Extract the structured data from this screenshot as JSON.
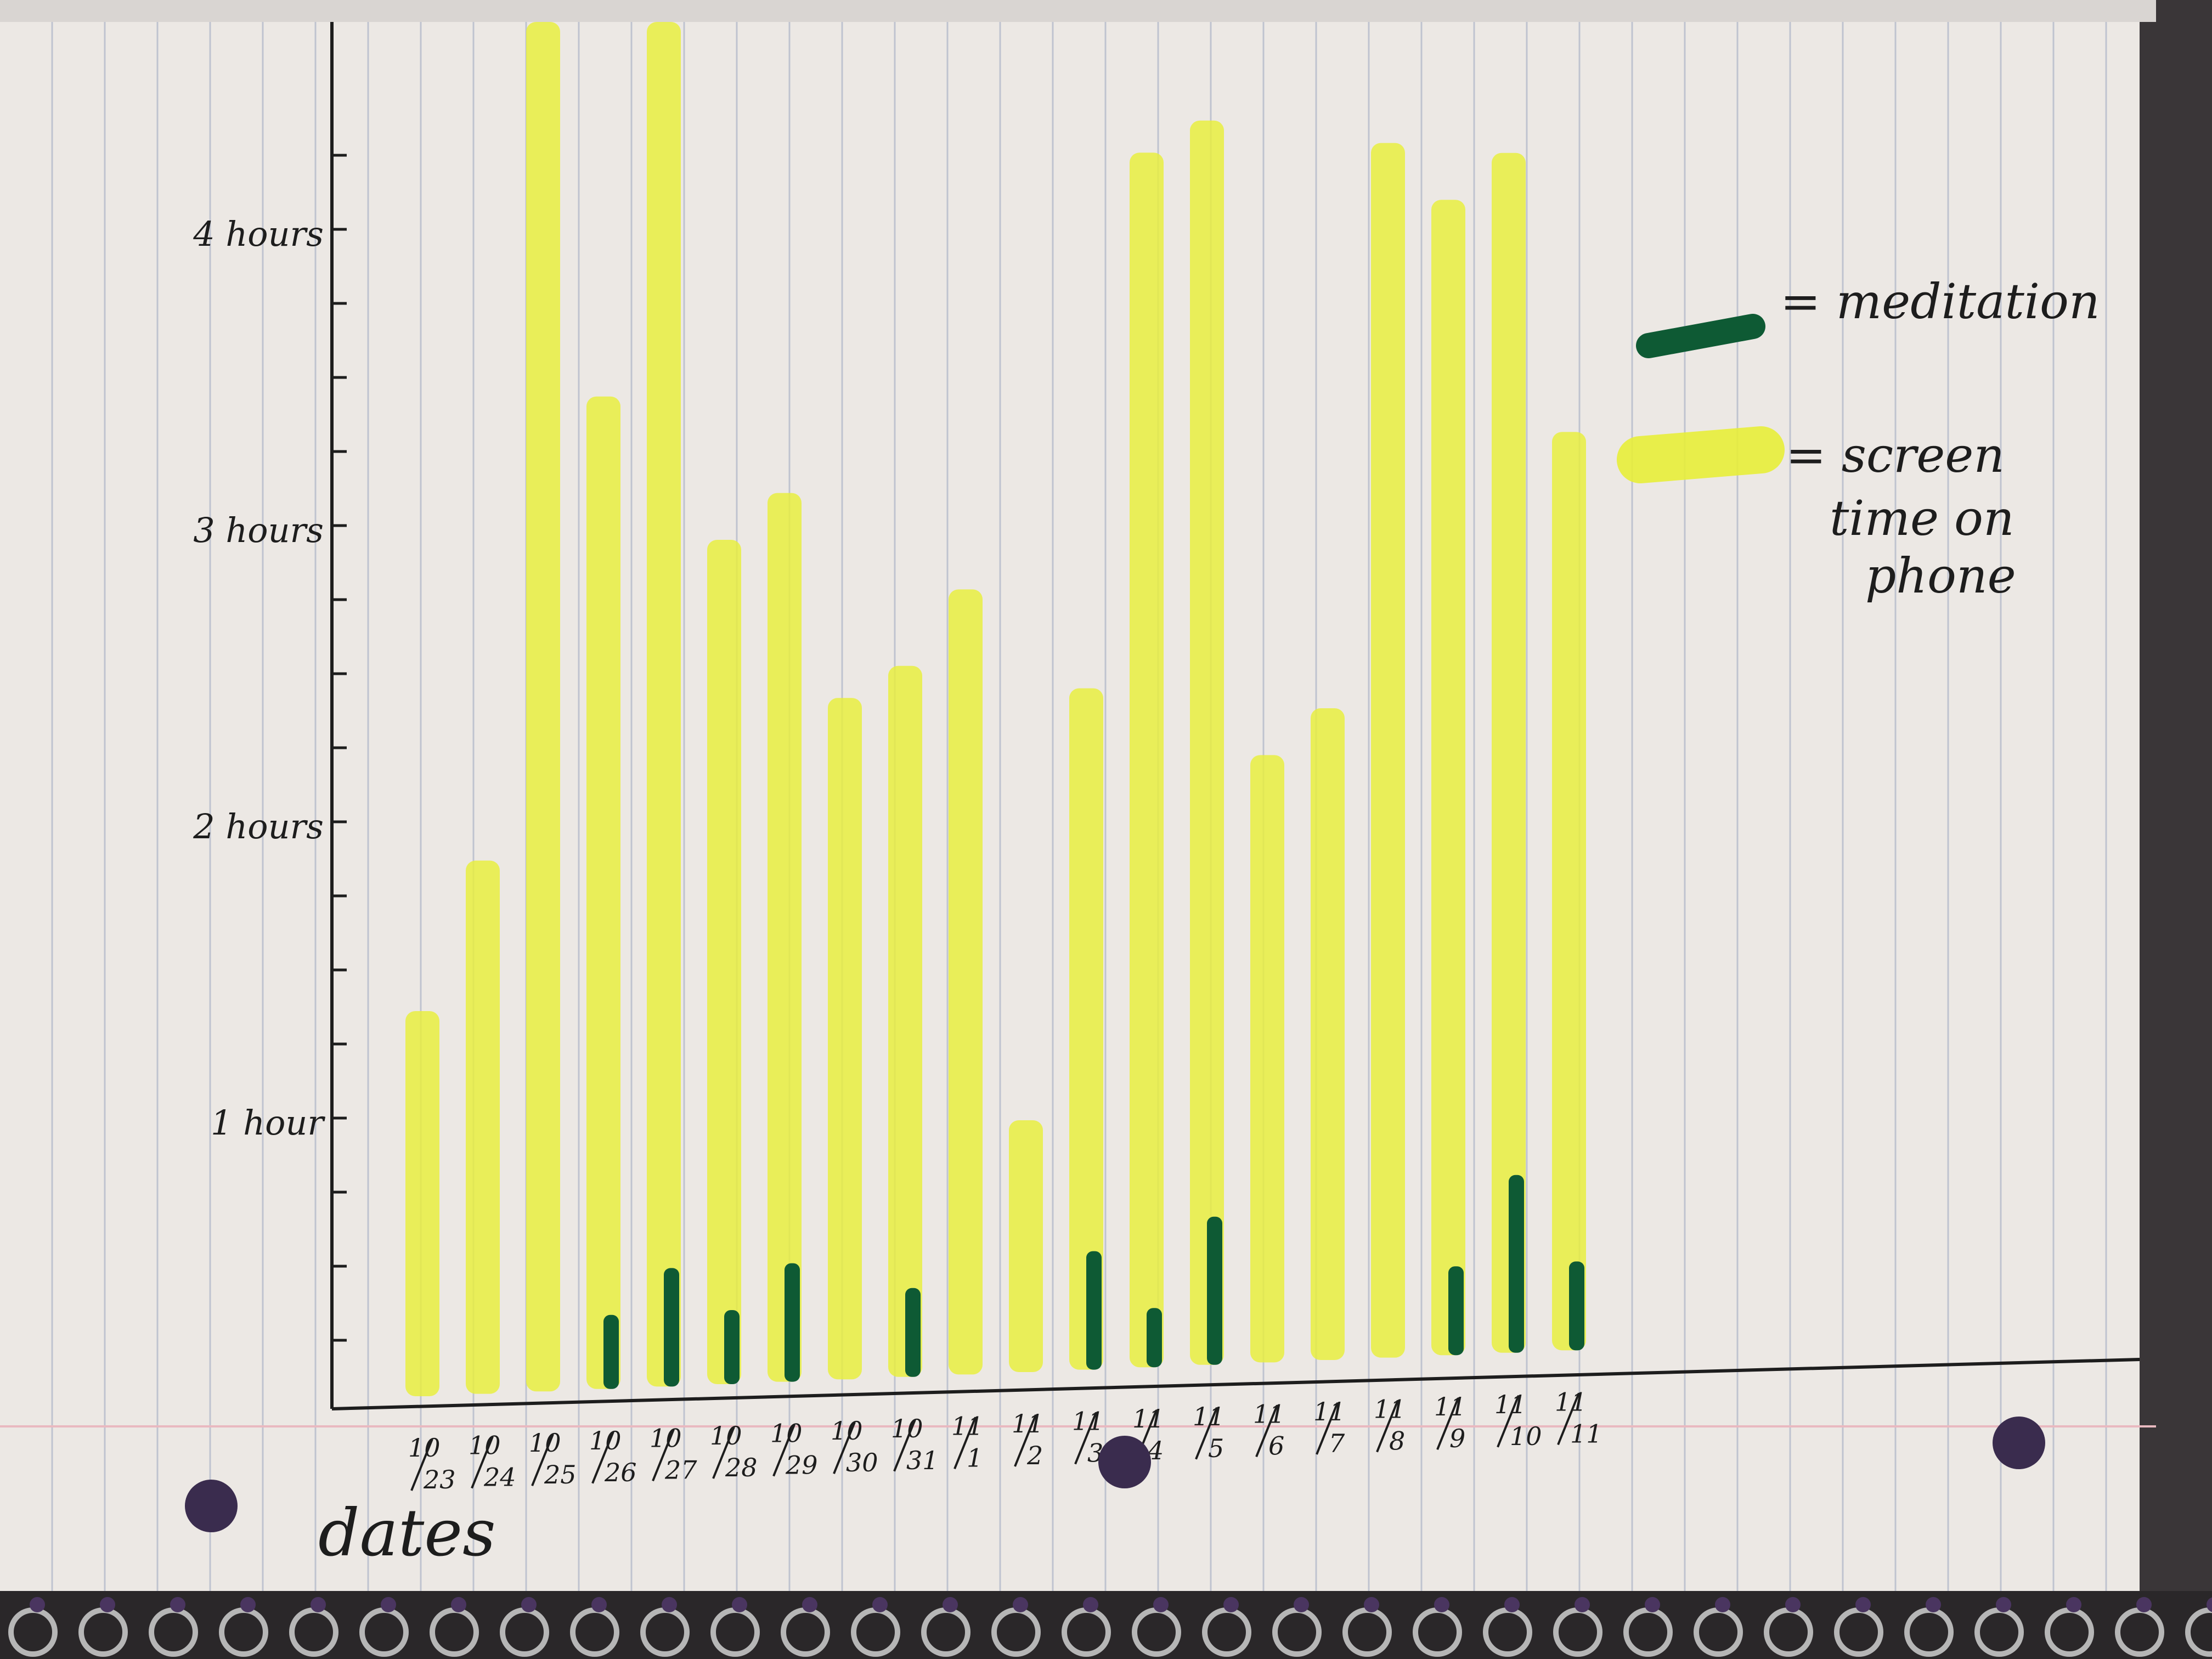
{
  "chart_data": {
    "type": "bar",
    "title": "",
    "xlabel": "dates",
    "ylabel": "",
    "ylim": [
      0,
      4.4
    ],
    "y_ticks": [
      {
        "value": 1,
        "label": "1 hour"
      },
      {
        "value": 2,
        "label": "2 hours"
      },
      {
        "value": 3,
        "label": "3 hours"
      },
      {
        "value": 4,
        "label": "4 hours"
      }
    ],
    "categories": [
      {
        "num": "10",
        "den": "23"
      },
      {
        "num": "10",
        "den": "24"
      },
      {
        "num": "10",
        "den": "25"
      },
      {
        "num": "10",
        "den": "26"
      },
      {
        "num": "10",
        "den": "27"
      },
      {
        "num": "10",
        "den": "28"
      },
      {
        "num": "10",
        "den": "29"
      },
      {
        "num": "10",
        "den": "30"
      },
      {
        "num": "10",
        "den": "31"
      },
      {
        "num": "11",
        "den": "1"
      },
      {
        "num": "11",
        "den": "2"
      },
      {
        "num": "11",
        "den": "3"
      },
      {
        "num": "11",
        "den": "4"
      },
      {
        "num": "11",
        "den": "5"
      },
      {
        "num": "11",
        "den": "6"
      },
      {
        "num": "11",
        "den": "7"
      },
      {
        "num": "11",
        "den": "8"
      },
      {
        "num": "11",
        "den": "9"
      },
      {
        "num": "11",
        "den": "10"
      },
      {
        "num": "11",
        "den": "11"
      }
    ],
    "series": [
      {
        "name": "screen time on phone",
        "color": "#e8ef3a",
        "values": [
          1.3,
          1.8,
          4.7,
          3.35,
          4.7,
          2.85,
          3.0,
          2.3,
          2.4,
          2.65,
          0.85,
          2.3,
          4.1,
          4.2,
          2.05,
          2.2,
          4.1,
          3.9,
          4.05,
          3.1
        ]
      },
      {
        "name": "meditation",
        "color": "#0e5a34",
        "values": [
          0,
          0,
          0,
          0.25,
          0.4,
          0.25,
          0.4,
          0,
          0.3,
          0,
          0,
          0.4,
          0.2,
          0.5,
          0,
          0,
          0,
          0.3,
          0.6,
          0.3
        ]
      }
    ],
    "legend": {
      "placement": "right",
      "entries": [
        {
          "label": "= meditation"
        },
        {
          "label": "= screen",
          "label2": "time on",
          "label3": "phone"
        }
      ]
    }
  }
}
